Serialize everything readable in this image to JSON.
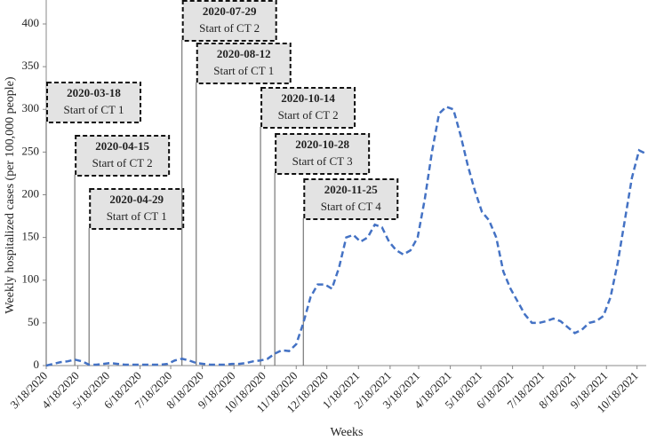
{
  "chart_data": {
    "type": "line",
    "y_label": "Weekly hospitalized cases (per 100,000 people)",
    "x_label": "Weeks",
    "x": [
      "2020-03-18",
      "2020-03-25",
      "2020-04-01",
      "2020-04-08",
      "2020-04-15",
      "2020-04-22",
      "2020-04-29",
      "2020-05-06",
      "2020-05-13",
      "2020-05-20",
      "2020-05-27",
      "2020-06-03",
      "2020-06-10",
      "2020-06-17",
      "2020-06-24",
      "2020-07-01",
      "2020-07-08",
      "2020-07-15",
      "2020-07-22",
      "2020-07-29",
      "2020-08-05",
      "2020-08-12",
      "2020-08-19",
      "2020-08-26",
      "2020-09-02",
      "2020-09-09",
      "2020-09-16",
      "2020-09-23",
      "2020-09-30",
      "2020-10-07",
      "2020-10-14",
      "2020-10-21",
      "2020-10-28",
      "2020-11-04",
      "2020-11-11",
      "2020-11-18",
      "2020-11-25",
      "2020-12-02",
      "2020-12-09",
      "2020-12-16",
      "2020-12-23",
      "2020-12-30",
      "2021-01-06",
      "2021-01-13",
      "2021-01-20",
      "2021-01-27",
      "2021-02-03",
      "2021-02-10",
      "2021-02-17",
      "2021-02-24",
      "2021-03-03",
      "2021-03-10",
      "2021-03-17",
      "2021-03-24",
      "2021-03-31",
      "2021-04-07",
      "2021-04-14",
      "2021-04-21",
      "2021-04-28",
      "2021-05-05",
      "2021-05-12",
      "2021-05-19",
      "2021-05-26",
      "2021-06-02",
      "2021-06-09",
      "2021-06-16",
      "2021-06-23",
      "2021-06-30",
      "2021-07-07",
      "2021-07-14",
      "2021-07-21",
      "2021-07-28",
      "2021-08-04",
      "2021-08-11",
      "2021-08-18",
      "2021-08-25",
      "2021-09-01",
      "2021-09-08",
      "2021-09-15",
      "2021-09-22",
      "2021-09-29",
      "2021-10-06",
      "2021-10-13",
      "2021-10-20",
      "2021-10-27"
    ],
    "series": [
      {
        "color": "#4472c4",
        "values": [
          0,
          2,
          4,
          5,
          7,
          5,
          1,
          1,
          2,
          3,
          2,
          1,
          1,
          1,
          1,
          1,
          1,
          2,
          6,
          8,
          6,
          3,
          2,
          1,
          1,
          1,
          2,
          2,
          3,
          5,
          6,
          8,
          14,
          18,
          17,
          25,
          50,
          80,
          95,
          95,
          90,
          115,
          150,
          153,
          145,
          150,
          165,
          162,
          145,
          135,
          130,
          135,
          150,
          195,
          250,
          295,
          303,
          300,
          270,
          235,
          205,
          180,
          170,
          150,
          110,
          90,
          75,
          60,
          50,
          50,
          52,
          55,
          52,
          45,
          38,
          42,
          50,
          52,
          58,
          80,
          120,
          170,
          220,
          252,
          248
        ]
      }
    ],
    "xlim": [
      "2020-03-18",
      "2021-10-27"
    ],
    "xticks": [
      {
        "value": "2020-03-18",
        "label": "3/18/2020"
      },
      {
        "value": "2020-04-18",
        "label": "4/18/2020"
      },
      {
        "value": "2020-05-18",
        "label": "5/18/2020"
      },
      {
        "value": "2020-06-18",
        "label": "6/18/2020"
      },
      {
        "value": "2020-07-18",
        "label": "7/18/2020"
      },
      {
        "value": "2020-08-18",
        "label": "8/18/2020"
      },
      {
        "value": "2020-09-18",
        "label": "9/18/2020"
      },
      {
        "value": "2020-10-18",
        "label": "10/18/2020"
      },
      {
        "value": "2020-11-18",
        "label": "11/18/2020"
      },
      {
        "value": "2020-12-18",
        "label": "12/18/2020"
      },
      {
        "value": "2021-01-18",
        "label": "1/18/2021"
      },
      {
        "value": "2021-02-18",
        "label": "2/18/2021"
      },
      {
        "value": "2021-03-18",
        "label": "3/18/2021"
      },
      {
        "value": "2021-04-18",
        "label": "4/18/2021"
      },
      {
        "value": "2021-05-18",
        "label": "5/18/2021"
      },
      {
        "value": "2021-06-18",
        "label": "6/18/2021"
      },
      {
        "value": "2021-07-18",
        "label": "7/18/2021"
      },
      {
        "value": "2021-08-18",
        "label": "8/18/2021"
      },
      {
        "value": "2021-09-18",
        "label": "9/18/2021"
      },
      {
        "value": "2021-10-18",
        "label": "10/18/2021"
      }
    ],
    "ylim": [
      0,
      400
    ],
    "yticks": [
      0,
      50,
      100,
      150,
      200,
      250,
      300,
      350,
      400
    ],
    "grid": false,
    "annotations": [
      {
        "date": "2020-03-18",
        "label": "Start of CT 1"
      },
      {
        "date": "2020-04-15",
        "label": "Start of CT 2"
      },
      {
        "date": "2020-04-29",
        "label": "Start of CT 1"
      },
      {
        "date": "2020-07-29",
        "label": "Start of CT 2"
      },
      {
        "date": "2020-08-12",
        "label": "Start of CT 1"
      },
      {
        "date": "2020-10-14",
        "label": "Start of CT 2"
      },
      {
        "date": "2020-10-28",
        "label": "Start of CT 3"
      },
      {
        "date": "2020-11-25",
        "label": "Start of CT 4"
      }
    ]
  }
}
